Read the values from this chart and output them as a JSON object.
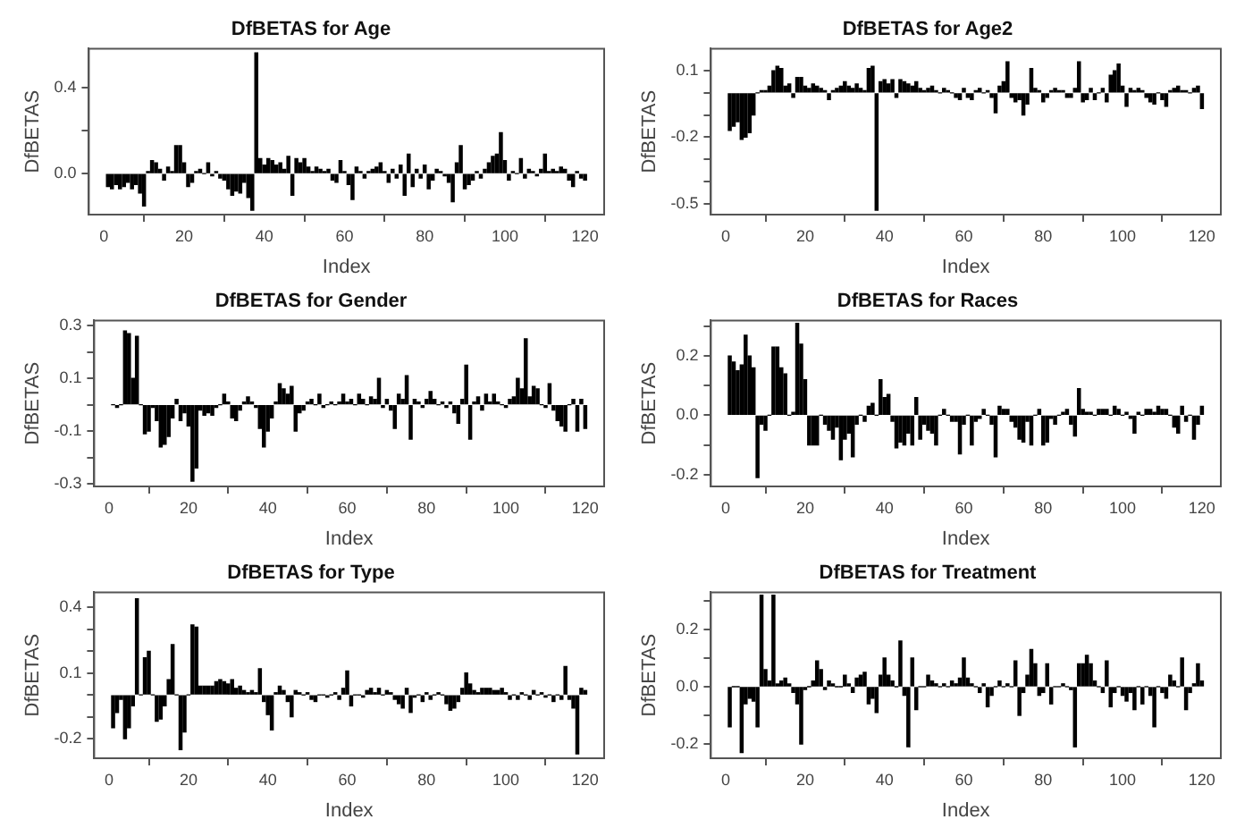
{
  "chart_data": [
    {
      "type": "bar",
      "title": "DfBETAS for Age",
      "xlabel": "Index",
      "ylabel": "DfBETAS",
      "color": "#000000",
      "grid": false,
      "xlim": [
        -3.76,
        124.76
      ],
      "xticks": [
        0,
        20,
        40,
        60,
        80,
        100,
        120
      ],
      "ylim": [
        -0.19,
        0.58
      ],
      "yticks": [
        {
          "value": 0,
          "label": "0.0"
        },
        {
          "value": 0.2,
          "label": null
        },
        {
          "value": 0.4,
          "label": "0.4"
        }
      ],
      "x": [
        1,
        2,
        3,
        4,
        5,
        6,
        7,
        8,
        9,
        10,
        11,
        12,
        13,
        14,
        15,
        16,
        17,
        18,
        19,
        20,
        21,
        22,
        23,
        24,
        25,
        26,
        27,
        28,
        29,
        30,
        31,
        32,
        33,
        34,
        35,
        36,
        37,
        38,
        39,
        40,
        41,
        42,
        43,
        44,
        45,
        46,
        47,
        48,
        49,
        50,
        51,
        52,
        53,
        54,
        55,
        56,
        57,
        58,
        59,
        60,
        61,
        62,
        63,
        64,
        65,
        66,
        67,
        68,
        69,
        70,
        71,
        72,
        73,
        74,
        75,
        76,
        77,
        78,
        79,
        80,
        81,
        82,
        83,
        84,
        85,
        86,
        87,
        88,
        89,
        90,
        91,
        92,
        93,
        94,
        95,
        96,
        97,
        98,
        99,
        100,
        101,
        102,
        103,
        104,
        105,
        106,
        107,
        108,
        109,
        110,
        111,
        112,
        113,
        114,
        115,
        116,
        117,
        118,
        119,
        120
      ],
      "values": [
        -0.06,
        -0.07,
        -0.05,
        -0.07,
        -0.06,
        -0.04,
        -0.07,
        -0.05,
        -0.09,
        -0.15,
        0.01,
        0.06,
        0.05,
        0.02,
        -0.03,
        0.03,
        0.01,
        0.13,
        0.13,
        0.05,
        -0.06,
        -0.04,
        0.01,
        0.02,
        0.0,
        0.05,
        -0.01,
        0.01,
        -0.02,
        -0.03,
        -0.07,
        -0.1,
        -0.08,
        -0.09,
        -0.04,
        -0.11,
        -0.17,
        0.56,
        0.07,
        0.04,
        0.07,
        0.06,
        0.04,
        0.05,
        0.02,
        0.08,
        -0.1,
        0.07,
        0.05,
        0.07,
        0.03,
        0.01,
        0.03,
        0.02,
        0.01,
        0.02,
        -0.03,
        -0.04,
        0.06,
        0.01,
        -0.05,
        -0.12,
        0.03,
        0.01,
        -0.02,
        0.01,
        0.02,
        0.03,
        0.05,
        0.01,
        -0.04,
        0.02,
        -0.02,
        0.04,
        -0.1,
        0.09,
        -0.06,
        0.02,
        -0.02,
        0.04,
        -0.07,
        -0.03,
        0.02,
        0.01,
        -0.01,
        -0.04,
        -0.13,
        0.05,
        0.13,
        -0.07,
        -0.05,
        -0.03,
        0.01,
        -0.02,
        0.02,
        0.05,
        0.08,
        0.09,
        0.19,
        0.06,
        -0.03,
        0.01,
        0.0,
        0.07,
        -0.02,
        0.02,
        0.01,
        -0.01,
        0.02,
        0.09,
        0.01,
        0.02,
        0.01,
        0.03,
        0.02,
        -0.03,
        -0.06,
        0.01,
        -0.02,
        -0.03
      ]
    },
    {
      "type": "bar",
      "title": "DfBETAS for Age2",
      "xlabel": "Index",
      "ylabel": "DfBETAS",
      "color": "#000000",
      "grid": false,
      "xlim": [
        -3.76,
        124.76
      ],
      "xticks": [
        0,
        20,
        40,
        60,
        80,
        100,
        120
      ],
      "ylim": [
        -0.55,
        0.2
      ],
      "yticks": [
        {
          "value": 0.1,
          "label": "0.1"
        },
        {
          "value": 0,
          "label": null
        },
        {
          "value": -0.1,
          "label": null
        },
        {
          "value": -0.2,
          "label": "-0.2"
        },
        {
          "value": -0.3,
          "label": null
        },
        {
          "value": -0.4,
          "label": null
        },
        {
          "value": -0.5,
          "label": "-0.5"
        }
      ],
      "x": [
        1,
        2,
        3,
        4,
        5,
        6,
        7,
        8,
        9,
        10,
        11,
        12,
        13,
        14,
        15,
        16,
        17,
        18,
        19,
        20,
        21,
        22,
        23,
        24,
        25,
        26,
        27,
        28,
        29,
        30,
        31,
        32,
        33,
        34,
        35,
        36,
        37,
        38,
        39,
        40,
        41,
        42,
        43,
        44,
        45,
        46,
        47,
        48,
        49,
        50,
        51,
        52,
        53,
        54,
        55,
        56,
        57,
        58,
        59,
        60,
        61,
        62,
        63,
        64,
        65,
        66,
        67,
        68,
        69,
        70,
        71,
        72,
        73,
        74,
        75,
        76,
        77,
        78,
        79,
        80,
        81,
        82,
        83,
        84,
        85,
        86,
        87,
        88,
        89,
        90,
        91,
        92,
        93,
        94,
        95,
        96,
        97,
        98,
        99,
        100,
        101,
        102,
        103,
        104,
        105,
        106,
        107,
        108,
        109,
        110,
        111,
        112,
        113,
        114,
        115,
        116,
        117,
        118,
        119,
        120
      ],
      "values": [
        -0.17,
        -0.15,
        -0.13,
        -0.21,
        -0.2,
        -0.18,
        -0.1,
        0.0,
        0.01,
        0.01,
        0.03,
        0.1,
        0.12,
        0.11,
        0.03,
        0.04,
        -0.02,
        0.07,
        0.07,
        0.03,
        0.02,
        0.04,
        0.03,
        0.02,
        0.01,
        -0.03,
        0.01,
        0.02,
        0.03,
        0.05,
        0.03,
        0.02,
        0.04,
        0.02,
        0.01,
        0.11,
        0.12,
        -0.53,
        0.05,
        0.06,
        0.04,
        0.06,
        -0.02,
        0.06,
        0.05,
        0.04,
        0.03,
        0.05,
        0.02,
        0.01,
        0.02,
        0.03,
        0.01,
        0.0,
        0.02,
        0.01,
        0.0,
        -0.02,
        -0.03,
        0.02,
        -0.02,
        -0.03,
        0.01,
        0.02,
        0.0,
        0.01,
        -0.02,
        -0.09,
        0.03,
        0.05,
        0.14,
        -0.02,
        -0.04,
        -0.03,
        -0.1,
        -0.05,
        0.11,
        0.02,
        0.01,
        -0.04,
        -0.02,
        0.01,
        0.02,
        0.01,
        0.01,
        -0.02,
        -0.02,
        0.02,
        0.14,
        -0.04,
        -0.03,
        0.02,
        -0.03,
        0.0,
        0.02,
        -0.04,
        0.08,
        0.1,
        0.13,
        0.03,
        -0.06,
        0.02,
        0.01,
        0.02,
        0.01,
        -0.02,
        -0.04,
        -0.05,
        0.0,
        -0.03,
        -0.06,
        0.01,
        0.02,
        0.03,
        0.01,
        0.01,
        0.0,
        0.02,
        0.03,
        -0.07
      ]
    },
    {
      "type": "bar",
      "title": "DfBETAS for Gender",
      "xlabel": "Index",
      "ylabel": "DfBETAS",
      "color": "#000000",
      "grid": false,
      "xlim": [
        -3.76,
        124.76
      ],
      "xticks": [
        0,
        20,
        40,
        60,
        80,
        100,
        120
      ],
      "ylim": [
        -0.31,
        0.32
      ],
      "yticks": [
        {
          "value": 0.3,
          "label": "0.3"
        },
        {
          "value": 0.2,
          "label": null
        },
        {
          "value": 0.1,
          "label": "0.1"
        },
        {
          "value": 0,
          "label": null
        },
        {
          "value": -0.1,
          "label": "-0.1"
        },
        {
          "value": -0.2,
          "label": null
        },
        {
          "value": -0.3,
          "label": "-0.3"
        }
      ],
      "x": [
        1,
        2,
        3,
        4,
        5,
        6,
        7,
        8,
        9,
        10,
        11,
        12,
        13,
        14,
        15,
        16,
        17,
        18,
        19,
        20,
        21,
        22,
        23,
        24,
        25,
        26,
        27,
        28,
        29,
        30,
        31,
        32,
        33,
        34,
        35,
        36,
        37,
        38,
        39,
        40,
        41,
        42,
        43,
        44,
        45,
        46,
        47,
        48,
        49,
        50,
        51,
        52,
        53,
        54,
        55,
        56,
        57,
        58,
        59,
        60,
        61,
        62,
        63,
        64,
        65,
        66,
        67,
        68,
        69,
        70,
        71,
        72,
        73,
        74,
        75,
        76,
        77,
        78,
        79,
        80,
        81,
        82,
        83,
        84,
        85,
        86,
        87,
        88,
        89,
        90,
        91,
        92,
        93,
        94,
        95,
        96,
        97,
        98,
        99,
        100,
        101,
        102,
        103,
        104,
        105,
        106,
        107,
        108,
        109,
        110,
        111,
        112,
        113,
        114,
        115,
        116,
        117,
        118,
        119,
        120
      ],
      "values": [
        0.0,
        -0.01,
        0.0,
        0.28,
        0.27,
        0.1,
        0.26,
        0.0,
        -0.11,
        -0.1,
        -0.01,
        -0.06,
        -0.16,
        -0.15,
        -0.12,
        -0.05,
        0.02,
        -0.06,
        -0.03,
        -0.08,
        -0.29,
        -0.24,
        -0.02,
        -0.04,
        -0.03,
        -0.04,
        -0.01,
        0.0,
        0.04,
        0.01,
        -0.05,
        -0.06,
        -0.02,
        0.01,
        0.03,
        0.01,
        -0.01,
        -0.09,
        -0.16,
        -0.1,
        -0.05,
        0.01,
        0.08,
        0.06,
        0.04,
        0.07,
        -0.1,
        -0.03,
        -0.02,
        0.01,
        0.02,
        0.0,
        0.04,
        -0.01,
        0.0,
        0.01,
        0.0,
        0.01,
        0.04,
        0.01,
        0.02,
        0.0,
        0.04,
        0.02,
        0.0,
        0.03,
        0.02,
        0.1,
        -0.01,
        0.02,
        -0.02,
        -0.09,
        0.04,
        0.02,
        0.11,
        -0.13,
        0.02,
        0.01,
        -0.01,
        0.02,
        0.05,
        0.02,
        0.0,
        0.01,
        -0.01,
        0.01,
        -0.03,
        -0.07,
        0.02,
        0.15,
        -0.13,
        0.01,
        0.03,
        -0.02,
        0.04,
        0.01,
        0.04,
        0.01,
        0.0,
        -0.01,
        0.02,
        0.03,
        0.1,
        0.06,
        0.25,
        0.03,
        0.07,
        0.06,
        0.0,
        -0.01,
        0.08,
        -0.02,
        -0.06,
        -0.08,
        -0.1,
        0.0,
        0.02,
        -0.1,
        0.02,
        -0.09
      ]
    },
    {
      "type": "bar",
      "title": "DfBETAS for Races",
      "xlabel": "Index",
      "ylabel": "DfBETAS",
      "color": "#000000",
      "grid": false,
      "xlim": [
        -3.76,
        124.76
      ],
      "xticks": [
        0,
        20,
        40,
        60,
        80,
        100,
        120
      ],
      "ylim": [
        -0.24,
        0.32
      ],
      "yticks": [
        {
          "value": 0.3,
          "label": null
        },
        {
          "value": 0.2,
          "label": "0.2"
        },
        {
          "value": 0.1,
          "label": null
        },
        {
          "value": 0,
          "label": "0.0"
        },
        {
          "value": -0.1,
          "label": null
        },
        {
          "value": -0.2,
          "label": "-0.2"
        }
      ],
      "x": [
        1,
        2,
        3,
        4,
        5,
        6,
        7,
        8,
        9,
        10,
        11,
        12,
        13,
        14,
        15,
        16,
        17,
        18,
        19,
        20,
        21,
        22,
        23,
        24,
        25,
        26,
        27,
        28,
        29,
        30,
        31,
        32,
        33,
        34,
        35,
        36,
        37,
        38,
        39,
        40,
        41,
        42,
        43,
        44,
        45,
        46,
        47,
        48,
        49,
        50,
        51,
        52,
        53,
        54,
        55,
        56,
        57,
        58,
        59,
        60,
        61,
        62,
        63,
        64,
        65,
        66,
        67,
        68,
        69,
        70,
        71,
        72,
        73,
        74,
        75,
        76,
        77,
        78,
        79,
        80,
        81,
        82,
        83,
        84,
        85,
        86,
        87,
        88,
        89,
        90,
        91,
        92,
        93,
        94,
        95,
        96,
        97,
        98,
        99,
        100,
        101,
        102,
        103,
        104,
        105,
        106,
        107,
        108,
        109,
        110,
        111,
        112,
        113,
        114,
        115,
        116,
        117,
        118,
        119,
        120
      ],
      "values": [
        0.2,
        0.18,
        0.15,
        0.17,
        0.27,
        0.2,
        0.16,
        -0.21,
        -0.03,
        -0.05,
        0.0,
        0.23,
        0.23,
        0.16,
        0.14,
        0.0,
        0.01,
        0.31,
        0.24,
        0.12,
        -0.1,
        -0.1,
        -0.1,
        0.0,
        -0.03,
        -0.05,
        -0.08,
        -0.04,
        -0.15,
        -0.08,
        -0.06,
        -0.14,
        -0.03,
        0.0,
        -0.02,
        0.03,
        0.04,
        0.0,
        0.12,
        0.06,
        0.07,
        -0.02,
        -0.11,
        -0.09,
        -0.1,
        -0.06,
        -0.1,
        0.06,
        -0.08,
        -0.03,
        -0.05,
        -0.06,
        -0.1,
        0.0,
        0.02,
        0.0,
        -0.02,
        -0.02,
        -0.13,
        -0.03,
        0.0,
        -0.1,
        -0.02,
        -0.01,
        0.02,
        0.0,
        -0.03,
        -0.14,
        0.03,
        0.02,
        0.02,
        -0.02,
        -0.04,
        -0.08,
        -0.09,
        -0.02,
        -0.1,
        0.0,
        0.02,
        -0.1,
        -0.09,
        -0.01,
        -0.03,
        0.0,
        0.01,
        0.02,
        -0.03,
        -0.07,
        0.09,
        0.02,
        0.01,
        0.01,
        0.0,
        0.02,
        0.02,
        0.02,
        0.0,
        0.03,
        0.02,
        0.0,
        0.01,
        -0.01,
        -0.06,
        0.01,
        0.0,
        0.02,
        0.02,
        0.01,
        0.03,
        0.02,
        0.02,
        0.0,
        -0.04,
        -0.06,
        0.03,
        -0.02,
        0.0,
        -0.08,
        -0.03,
        0.03
      ]
    },
    {
      "type": "bar",
      "title": "DfBETAS for Type",
      "xlabel": "Index",
      "ylabel": "DfBETAS",
      "color": "#000000",
      "grid": false,
      "xlim": [
        -3.76,
        124.76
      ],
      "xticks": [
        0,
        20,
        40,
        60,
        80,
        100,
        120
      ],
      "ylim": [
        -0.29,
        0.47
      ],
      "yticks": [
        {
          "value": 0.4,
          "label": "0.4"
        },
        {
          "value": 0.3,
          "label": null
        },
        {
          "value": 0.2,
          "label": null
        },
        {
          "value": 0.1,
          "label": "0.1"
        },
        {
          "value": 0,
          "label": null
        },
        {
          "value": -0.1,
          "label": null
        },
        {
          "value": -0.2,
          "label": "-0.2"
        }
      ],
      "x": [
        1,
        2,
        3,
        4,
        5,
        6,
        7,
        8,
        9,
        10,
        11,
        12,
        13,
        14,
        15,
        16,
        17,
        18,
        19,
        20,
        21,
        22,
        23,
        24,
        25,
        26,
        27,
        28,
        29,
        30,
        31,
        32,
        33,
        34,
        35,
        36,
        37,
        38,
        39,
        40,
        41,
        42,
        43,
        44,
        45,
        46,
        47,
        48,
        49,
        50,
        51,
        52,
        53,
        54,
        55,
        56,
        57,
        58,
        59,
        60,
        61,
        62,
        63,
        64,
        65,
        66,
        67,
        68,
        69,
        70,
        71,
        72,
        73,
        74,
        75,
        76,
        77,
        78,
        79,
        80,
        81,
        82,
        83,
        84,
        85,
        86,
        87,
        88,
        89,
        90,
        91,
        92,
        93,
        94,
        95,
        96,
        97,
        98,
        99,
        100,
        101,
        102,
        103,
        104,
        105,
        106,
        107,
        108,
        109,
        110,
        111,
        112,
        113,
        114,
        115,
        116,
        117,
        118,
        119,
        120
      ],
      "values": [
        -0.15,
        -0.08,
        -0.02,
        -0.2,
        -0.15,
        -0.05,
        0.44,
        0.0,
        0.17,
        0.2,
        0.0,
        -0.12,
        -0.11,
        -0.05,
        0.07,
        0.23,
        0.0,
        -0.25,
        -0.17,
        0.0,
        0.32,
        0.31,
        0.04,
        0.04,
        0.04,
        0.04,
        0.06,
        0.07,
        0.06,
        0.05,
        0.07,
        0.03,
        0.04,
        0.02,
        0.01,
        0.02,
        0.01,
        0.12,
        -0.03,
        -0.09,
        -0.16,
        0.01,
        0.04,
        0.02,
        -0.03,
        -0.1,
        0.02,
        0.01,
        0.0,
        0.01,
        -0.02,
        -0.03,
        0.0,
        0.0,
        -0.01,
        0.0,
        0.01,
        -0.02,
        0.03,
        0.11,
        -0.05,
        0.0,
        0.0,
        -0.01,
        0.02,
        0.03,
        0.01,
        0.03,
        0.0,
        0.02,
        0.01,
        -0.02,
        -0.04,
        -0.06,
        0.03,
        -0.08,
        -0.01,
        0.0,
        -0.03,
        0.01,
        -0.02,
        0.0,
        0.01,
        0.0,
        -0.04,
        -0.07,
        -0.06,
        -0.03,
        0.03,
        0.1,
        0.05,
        0.02,
        0.01,
        0.03,
        0.03,
        0.03,
        0.02,
        0.02,
        0.03,
        0.01,
        -0.02,
        0.0,
        -0.02,
        0.01,
        0.0,
        -0.02,
        0.02,
        0.0,
        0.01,
        -0.01,
        0.0,
        -0.03,
        0.0,
        -0.02,
        0.13,
        -0.02,
        -0.06,
        -0.27,
        0.03,
        0.02
      ]
    },
    {
      "type": "bar",
      "title": "DfBETAS for Treatment",
      "xlabel": "Index",
      "ylabel": "DfBETAS",
      "color": "#000000",
      "grid": false,
      "xlim": [
        -3.76,
        124.76
      ],
      "xticks": [
        0,
        20,
        40,
        60,
        80,
        100,
        120
      ],
      "ylim": [
        -0.25,
        0.33
      ],
      "yticks": [
        {
          "value": 0.3,
          "label": null
        },
        {
          "value": 0.2,
          "label": "0.2"
        },
        {
          "value": 0.1,
          "label": null
        },
        {
          "value": 0,
          "label": "0.0"
        },
        {
          "value": -0.1,
          "label": null
        },
        {
          "value": -0.2,
          "label": "-0.2"
        }
      ],
      "x": [
        1,
        2,
        3,
        4,
        5,
        6,
        7,
        8,
        9,
        10,
        11,
        12,
        13,
        14,
        15,
        16,
        17,
        18,
        19,
        20,
        21,
        22,
        23,
        24,
        25,
        26,
        27,
        28,
        29,
        30,
        31,
        32,
        33,
        34,
        35,
        36,
        37,
        38,
        39,
        40,
        41,
        42,
        43,
        44,
        45,
        46,
        47,
        48,
        49,
        50,
        51,
        52,
        53,
        54,
        55,
        56,
        57,
        58,
        59,
        60,
        61,
        62,
        63,
        64,
        65,
        66,
        67,
        68,
        69,
        70,
        71,
        72,
        73,
        74,
        75,
        76,
        77,
        78,
        79,
        80,
        81,
        82,
        83,
        84,
        85,
        86,
        87,
        88,
        89,
        90,
        91,
        92,
        93,
        94,
        95,
        96,
        97,
        98,
        99,
        100,
        101,
        102,
        103,
        104,
        105,
        106,
        107,
        108,
        109,
        110,
        111,
        112,
        113,
        114,
        115,
        116,
        117,
        118,
        119,
        120
      ],
      "values": [
        -0.14,
        0.0,
        0.0,
        -0.23,
        -0.06,
        -0.04,
        -0.05,
        -0.14,
        0.32,
        0.06,
        0.02,
        0.32,
        0.01,
        0.02,
        0.03,
        0.01,
        -0.02,
        -0.06,
        -0.2,
        -0.01,
        0.0,
        0.02,
        0.09,
        0.06,
        -0.01,
        0.02,
        0.01,
        0.0,
        0.0,
        0.04,
        0.01,
        -0.02,
        0.03,
        0.04,
        0.05,
        -0.06,
        -0.04,
        -0.09,
        0.04,
        0.1,
        0.04,
        0.02,
        0.0,
        0.16,
        -0.03,
        -0.21,
        0.1,
        -0.08,
        0.0,
        0.0,
        0.04,
        0.02,
        0.01,
        0.0,
        0.01,
        0.0,
        0.02,
        0.01,
        0.03,
        0.1,
        0.03,
        0.01,
        0.0,
        -0.02,
        0.01,
        -0.07,
        -0.03,
        0.0,
        0.02,
        0.0,
        0.01,
        0.0,
        0.09,
        -0.1,
        -0.02,
        0.04,
        0.13,
        0.08,
        -0.03,
        -0.02,
        0.08,
        -0.06,
        0.0,
        0.0,
        0.01,
        0.0,
        -0.01,
        -0.21,
        0.08,
        0.08,
        0.11,
        0.08,
        0.02,
        0.0,
        -0.02,
        0.09,
        -0.07,
        -0.02,
        0.0,
        -0.03,
        -0.05,
        -0.02,
        -0.08,
        0.0,
        -0.06,
        0.0,
        -0.03,
        -0.14,
        0.0,
        -0.02,
        -0.04,
        0.04,
        0.02,
        0.0,
        0.1,
        -0.08,
        -0.02,
        0.01,
        0.08,
        0.02
      ]
    }
  ]
}
